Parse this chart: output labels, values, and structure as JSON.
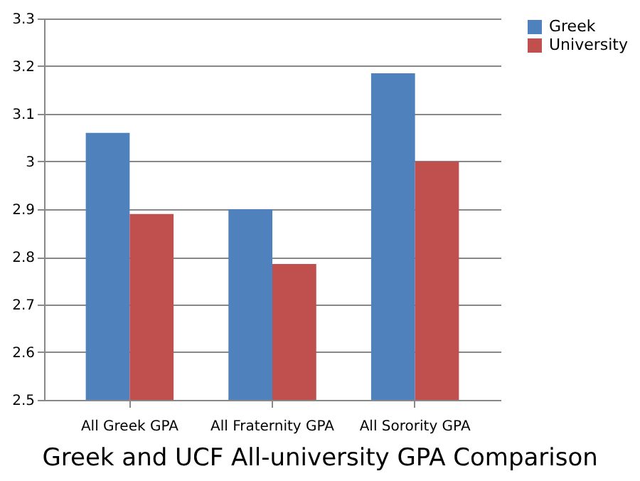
{
  "chart_data": {
    "type": "bar",
    "title": "Greek and UCF All-university GPA Comparison",
    "categories": [
      "All Greek GPA",
      "All Fraternity GPA",
      "All Sorority GPA"
    ],
    "series": [
      {
        "name": "Greek",
        "color": "#4f81bd",
        "values": [
          3.06,
          2.9,
          3.185
        ]
      },
      {
        "name": "University",
        "color": "#c0504d",
        "values": [
          2.89,
          2.785,
          3.0
        ]
      }
    ],
    "ylim": [
      2.5,
      3.3
    ],
    "yticks": [
      2.5,
      2.6,
      2.7,
      2.8,
      2.9,
      {
        "value": 3,
        "label": "3"
      },
      3.1,
      3.2,
      3.3
    ],
    "grid": "y",
    "legend": "right"
  }
}
